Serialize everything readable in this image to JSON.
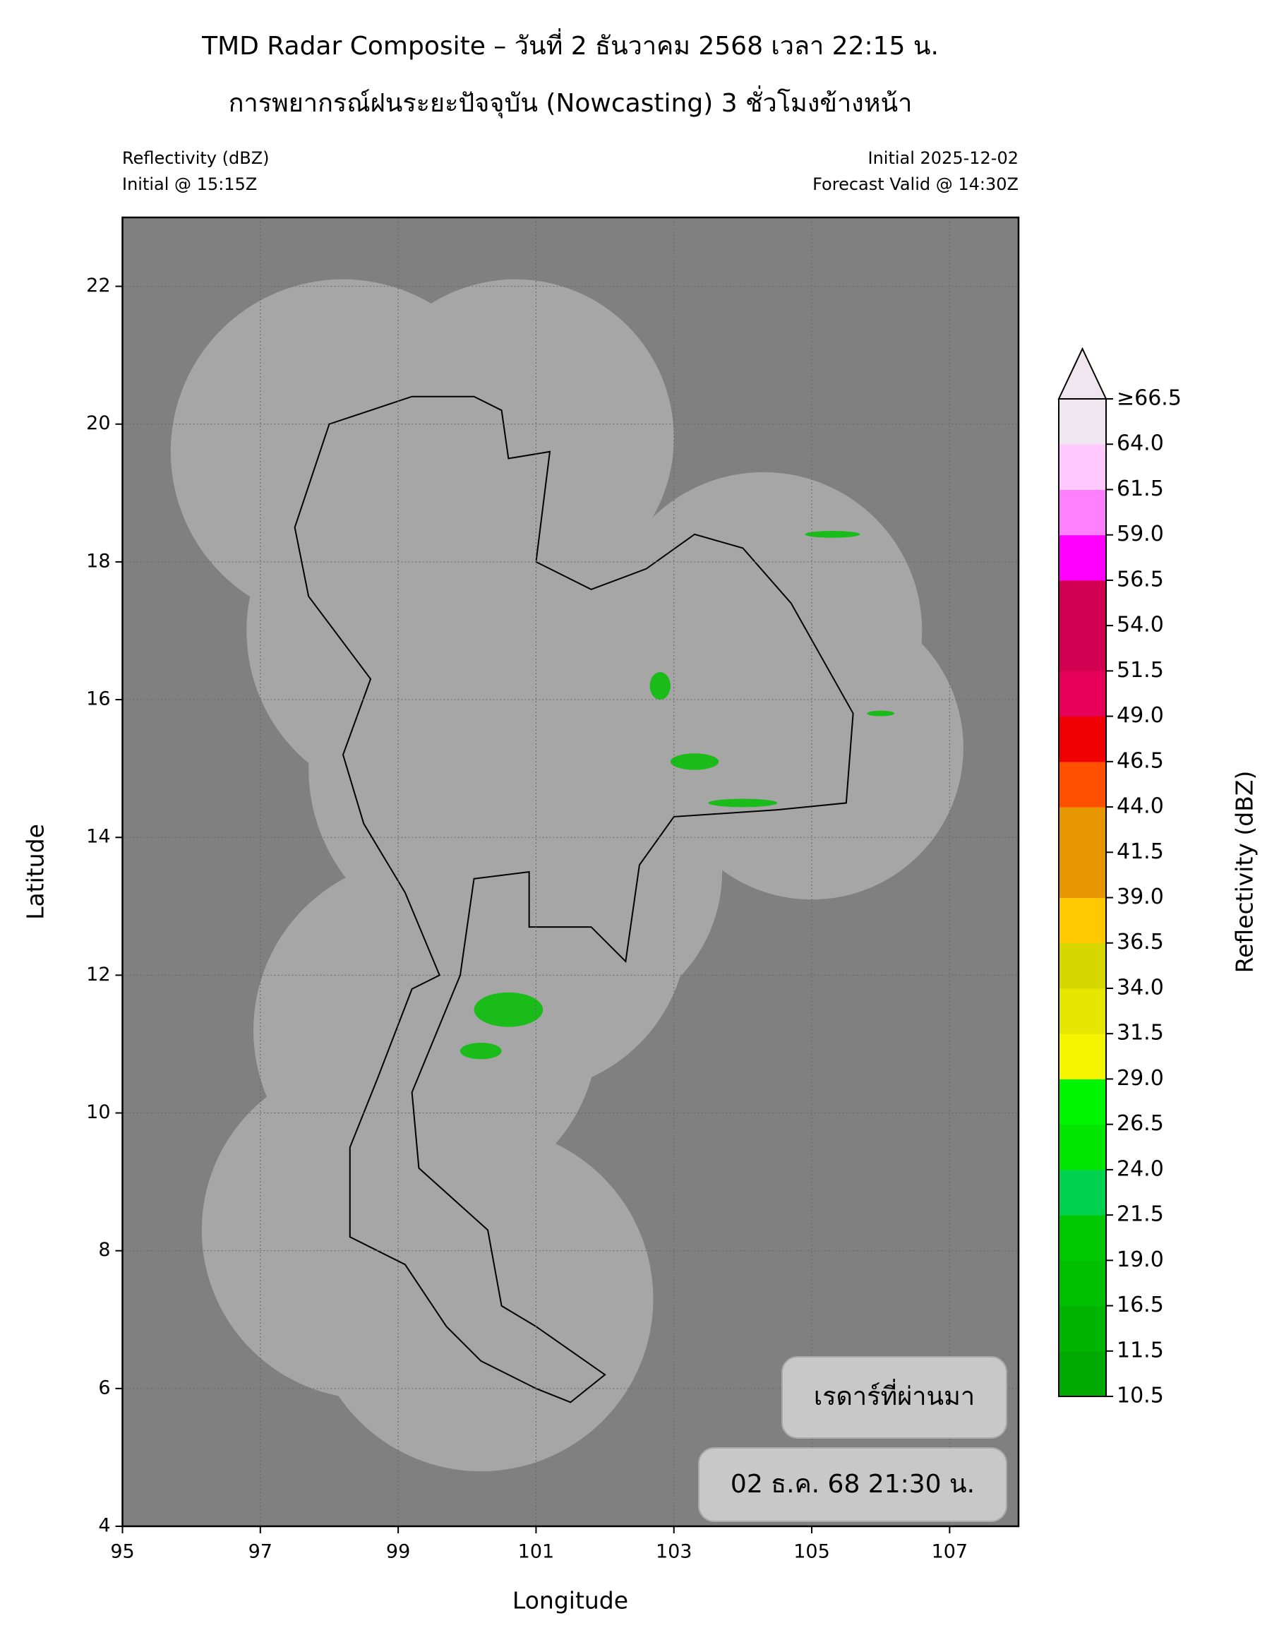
{
  "header": {
    "title": "TMD Radar Composite – วันที่ 2 ธันวาคม 2568 เวลา 22:15 น.",
    "subtitle": "การพยากรณ์ฝนระยะปัจจุบัน (Nowcasting) 3 ชั่วโมงข้างหน้า"
  },
  "info": {
    "left": [
      "Reflectivity (dBZ)",
      "Initial @ 15:15Z"
    ],
    "right": [
      "Initial 2025-12-02",
      "Forecast Valid @ 14:30Z"
    ]
  },
  "map": {
    "xlabel": "Longitude",
    "ylabel": "Latitude",
    "xlim": [
      95,
      108
    ],
    "ylim": [
      4,
      23
    ],
    "xticks": [
      95,
      97,
      99,
      101,
      103,
      105,
      107
    ],
    "yticks": [
      4,
      6,
      8,
      10,
      12,
      14,
      16,
      18,
      20,
      22
    ],
    "grid": true
  },
  "colorbar": {
    "label": "Reflectivity (dBZ)",
    "levels": [
      10.5,
      11.5,
      16.5,
      19.0,
      21.5,
      24.0,
      26.5,
      29.0,
      31.5,
      34.0,
      36.5,
      39.0,
      41.5,
      44.0,
      46.5,
      49.0,
      51.5,
      54.0,
      56.5,
      59.0,
      61.5,
      64.0,
      {
        "value": 66.5,
        "label": "≥66.5"
      }
    ],
    "level_labels": [
      "10.5",
      "11.5",
      "16.5",
      "19.0",
      "21.5",
      "24.0",
      "26.5",
      "29.0",
      "31.5",
      "34.0",
      "36.5",
      "39.0",
      "41.5",
      "44.0",
      "46.5",
      "49.0",
      "51.5",
      "54.0",
      "56.5",
      "59.0",
      "61.5",
      "64.0"
    ],
    "colors": [
      "#00aa00",
      "#00b400",
      "#00be00",
      "#00c800",
      "#00d250",
      "#00e600",
      "#00f500",
      "#f5f500",
      "#e6e600",
      "#d7d700",
      "#ffc800",
      "#e69600",
      "#e69600",
      "#ff5000",
      "#f00000",
      "#e6005a",
      "#d20050",
      "#d20050",
      "#ff00ff",
      "#ff80ff",
      "#ffc8ff",
      "#f0e6f0"
    ],
    "extend_color": "#f0e6f0"
  },
  "boxes": {
    "past": "เรดาร์ที่ผ่านมา",
    "time": "02 ธ.ค. 68 21:30 น."
  }
}
